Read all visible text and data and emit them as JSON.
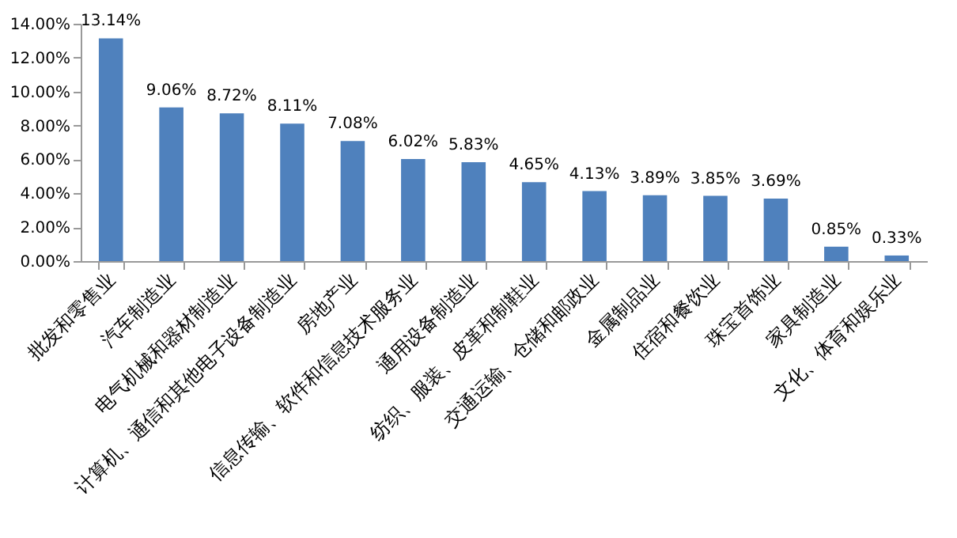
{
  "chart_data": {
    "type": "bar",
    "categories": [
      "批发和零售业",
      "汽车制造业",
      "电气机械和器材制造业",
      "计算机、通信和其他电子设备制造业",
      "房地产业",
      "信息传输、软件和信息技术服务业",
      "通用设备制造业",
      "纺织、服装、皮革和制鞋业",
      "交通运输、仓储和邮政业",
      "金属制品业",
      "住宿和餐饮业",
      "珠宝首饰业",
      "家具制造业",
      "文化、体育和娱乐业"
    ],
    "values": [
      13.14,
      9.06,
      8.72,
      8.11,
      7.08,
      6.02,
      5.83,
      4.65,
      4.13,
      3.89,
      3.85,
      3.69,
      0.85,
      0.33
    ],
    "value_labels": [
      "13.14%",
      "9.06%",
      "8.72%",
      "8.11%",
      "7.08%",
      "6.02%",
      "5.83%",
      "4.65%",
      "4.13%",
      "3.89%",
      "3.85%",
      "3.69%",
      "0.85%",
      "0.33%"
    ],
    "color": "#4f81bd",
    "ylim": [
      0,
      14
    ],
    "yticks": [
      {
        "value": 0,
        "label": "0.00%"
      },
      {
        "value": 2,
        "label": "2.00%"
      },
      {
        "value": 4,
        "label": "4.00%"
      },
      {
        "value": 6,
        "label": "6.00%"
      },
      {
        "value": 8,
        "label": "8.00%"
      },
      {
        "value": 10,
        "label": "10.00%"
      },
      {
        "value": 12,
        "label": "12.00%"
      },
      {
        "value": 14,
        "label": "14.00%"
      }
    ],
    "grid": false
  }
}
